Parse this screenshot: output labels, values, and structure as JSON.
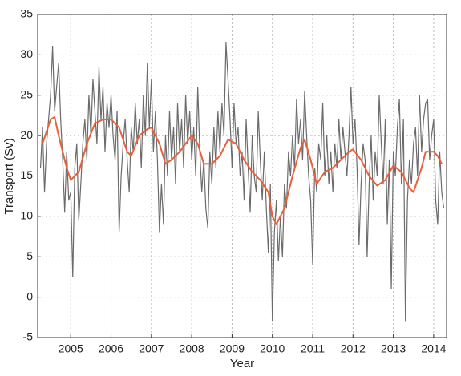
{
  "chart_data": {
    "type": "line",
    "xlabel": "Year",
    "ylabel": "Transport (Sv)",
    "xlim": [
      2004.18,
      2014.32
    ],
    "xticks": [
      2005,
      2006,
      2007,
      2008,
      2009,
      2010,
      2011,
      2012,
      2013,
      2014
    ],
    "ylim": [
      -5,
      35
    ],
    "yticks": [
      -5,
      0,
      5,
      10,
      15,
      20,
      25,
      30,
      35
    ],
    "grid": true,
    "series": [
      {
        "color": "#6b6b6b",
        "x": [
          2004.25,
          2004.3,
          2004.35,
          2004.4,
          2004.45,
          2004.5,
          2004.55,
          2004.6,
          2004.65,
          2004.7,
          2004.75,
          2004.8,
          2004.85,
          2004.9,
          2004.95,
          2005.0,
          2005.05,
          2005.1,
          2005.15,
          2005.2,
          2005.25,
          2005.3,
          2005.35,
          2005.4,
          2005.45,
          2005.5,
          2005.55,
          2005.6,
          2005.65,
          2005.7,
          2005.75,
          2005.8,
          2005.85,
          2005.9,
          2005.95,
          2006.0,
          2006.05,
          2006.1,
          2006.15,
          2006.2,
          2006.25,
          2006.3,
          2006.35,
          2006.4,
          2006.45,
          2006.5,
          2006.55,
          2006.6,
          2006.65,
          2006.7,
          2006.75,
          2006.8,
          2006.85,
          2006.9,
          2006.95,
          2007.0,
          2007.05,
          2007.1,
          2007.15,
          2007.2,
          2007.25,
          2007.3,
          2007.35,
          2007.4,
          2007.45,
          2007.5,
          2007.55,
          2007.6,
          2007.65,
          2007.7,
          2007.75,
          2007.8,
          2007.85,
          2007.9,
          2007.95,
          2008.0,
          2008.05,
          2008.1,
          2008.15,
          2008.2,
          2008.25,
          2008.3,
          2008.35,
          2008.4,
          2008.45,
          2008.5,
          2008.55,
          2008.6,
          2008.65,
          2008.7,
          2008.75,
          2008.8,
          2008.85,
          2008.9,
          2008.95,
          2009.0,
          2009.05,
          2009.1,
          2009.15,
          2009.2,
          2009.25,
          2009.3,
          2009.35,
          2009.4,
          2009.45,
          2009.5,
          2009.55,
          2009.6,
          2009.65,
          2009.7,
          2009.75,
          2009.8,
          2009.85,
          2009.9,
          2009.95,
          2010.0,
          2010.05,
          2010.1,
          2010.15,
          2010.2,
          2010.25,
          2010.3,
          2010.35,
          2010.4,
          2010.45,
          2010.5,
          2010.55,
          2010.6,
          2010.65,
          2010.7,
          2010.75,
          2010.8,
          2010.85,
          2010.9,
          2010.95,
          2011.0,
          2011.05,
          2011.1,
          2011.15,
          2011.2,
          2011.25,
          2011.3,
          2011.35,
          2011.4,
          2011.45,
          2011.5,
          2011.55,
          2011.6,
          2011.65,
          2011.7,
          2011.75,
          2011.8,
          2011.85,
          2011.9,
          2011.95,
          2012.0,
          2012.05,
          2012.1,
          2012.15,
          2012.2,
          2012.25,
          2012.3,
          2012.35,
          2012.4,
          2012.45,
          2012.5,
          2012.55,
          2012.6,
          2012.65,
          2012.7,
          2012.75,
          2012.8,
          2012.85,
          2012.9,
          2012.95,
          2013.0,
          2013.05,
          2013.1,
          2013.15,
          2013.2,
          2013.25,
          2013.3,
          2013.35,
          2013.4,
          2013.45,
          2013.5,
          2013.55,
          2013.6,
          2013.65,
          2013.7,
          2013.75,
          2013.8,
          2013.85,
          2013.9,
          2013.95,
          2014.0,
          2014.05,
          2014.1,
          2014.15,
          2014.2,
          2014.25
        ],
        "values": [
          16,
          21,
          13,
          19,
          22,
          25,
          31,
          23,
          26,
          29,
          22,
          17,
          10.5,
          18,
          12,
          13,
          2.5,
          16,
          19,
          9.5,
          14,
          19,
          22,
          17,
          25,
          20,
          27,
          23,
          19,
          28.5,
          22,
          26,
          18,
          24,
          21,
          25,
          20,
          17,
          23,
          8,
          15,
          19,
          22,
          17,
          13,
          21,
          18,
          24,
          19,
          22,
          16,
          25,
          20,
          29,
          21,
          27,
          18,
          23,
          17,
          8,
          14,
          9,
          20,
          15,
          23,
          17,
          21,
          14,
          24,
          18,
          22,
          16,
          25,
          19,
          23,
          17,
          21,
          15,
          26,
          18,
          13,
          17,
          11,
          8.5,
          18,
          14,
          21,
          16,
          23,
          18,
          24,
          20,
          31.5,
          27,
          22,
          16,
          24,
          19,
          21,
          15,
          18,
          12,
          22,
          16,
          10.5,
          20,
          15,
          13,
          23,
          17,
          12,
          18,
          11,
          5.5,
          14,
          -3,
          8,
          12,
          4.5,
          10,
          5,
          14,
          11,
          18,
          15,
          20,
          16,
          24.5,
          19,
          22,
          17,
          25.5,
          20,
          15,
          12,
          4,
          16,
          13,
          19,
          17,
          24,
          15,
          20,
          14,
          18,
          13,
          19,
          16,
          22,
          17,
          21,
          18,
          15,
          20,
          26,
          19,
          22,
          16,
          6.5,
          14,
          19,
          17,
          5,
          14,
          20,
          12,
          18,
          15,
          25,
          19,
          14,
          22,
          9,
          17,
          1,
          18,
          15,
          21,
          24.5,
          14,
          22,
          -3,
          12,
          17,
          14,
          19,
          21,
          15,
          25,
          18,
          22,
          24,
          24.5,
          17,
          20,
          22,
          12,
          9,
          18,
          13,
          11
        ]
      },
      {
        "color": "#e8603c",
        "x": [
          2004.3,
          2004.5,
          2004.6,
          2004.7,
          2004.9,
          2005.0,
          2005.2,
          2005.4,
          2005.6,
          2005.8,
          2006.0,
          2006.2,
          2006.4,
          2006.5,
          2006.7,
          2006.9,
          2007.0,
          2007.2,
          2007.35,
          2007.5,
          2007.7,
          2008.0,
          2008.15,
          2008.3,
          2008.5,
          2008.7,
          2008.9,
          2009.1,
          2009.3,
          2009.5,
          2009.7,
          2009.9,
          2010.0,
          2010.1,
          2010.3,
          2010.5,
          2010.7,
          2010.8,
          2010.95,
          2011.1,
          2011.3,
          2011.5,
          2011.7,
          2011.9,
          2012.0,
          2012.2,
          2012.4,
          2012.6,
          2012.8,
          2013.0,
          2013.2,
          2013.4,
          2013.5,
          2013.7,
          2013.8,
          2014.0,
          2014.1,
          2014.2
        ],
        "values": [
          19,
          22,
          22.3,
          20,
          16,
          14.5,
          15.5,
          19,
          21.5,
          22,
          22,
          21,
          18,
          17.5,
          20,
          20.8,
          21,
          19,
          16.5,
          17,
          18,
          20,
          19,
          16.5,
          16.5,
          17.5,
          19.5,
          19,
          17,
          15.5,
          14.5,
          13,
          10,
          9,
          11,
          15,
          18.5,
          19.5,
          17,
          14,
          15.5,
          16,
          17,
          18,
          18.3,
          17,
          15,
          13.8,
          14.5,
          16.3,
          15.5,
          13.5,
          13,
          16,
          18,
          18,
          17.5,
          16.5
        ]
      }
    ]
  }
}
